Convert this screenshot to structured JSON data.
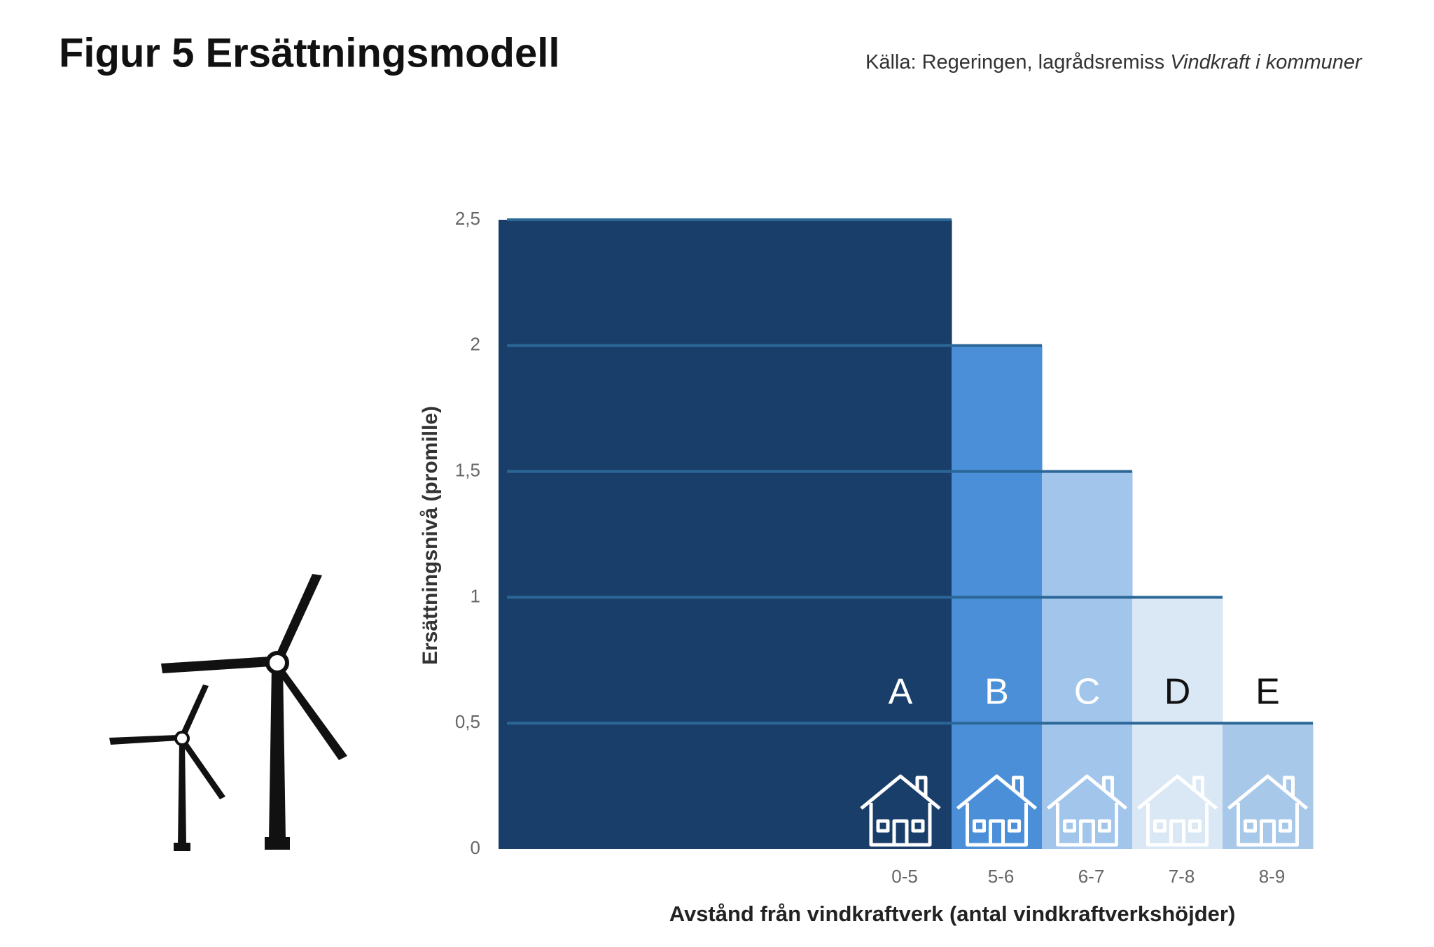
{
  "chart_data": {
    "type": "bar",
    "title": "Figur 5 Ersättningsmodell",
    "source": {
      "text": "Källa: Regeringen, lagrådsremiss ",
      "emphasis": "Vindkraft i kommuner"
    },
    "y_label": "Ersättningsnivå  (promille)",
    "x_label": "Avstånd från vindkraftverk (antal vindkraftverkshöjder)",
    "categories": [
      "0-5",
      "5-6",
      "6-7",
      "7-8",
      "8-9"
    ],
    "values": [
      2.5,
      2,
      1.5,
      1,
      0.5
    ],
    "labels": [
      "A",
      "B",
      "C",
      "D",
      "E"
    ],
    "colors": [
      "#1a3e6a",
      "#4a8fd8",
      "#a2c5eb",
      "#dae7f5",
      "#a8c8ea"
    ],
    "label_colors": [
      "#ffffff",
      "#ffffff",
      "#ffffff",
      "#111111",
      "#111111"
    ],
    "ylim": [
      0,
      2.5
    ],
    "yticks": [
      0,
      {
        "value": 0.5,
        "label": "0,5"
      },
      1,
      {
        "value": 1.5,
        "label": "1,5"
      },
      2,
      {
        "value": 2.5,
        "label": "2,5"
      }
    ],
    "grid": true
  }
}
